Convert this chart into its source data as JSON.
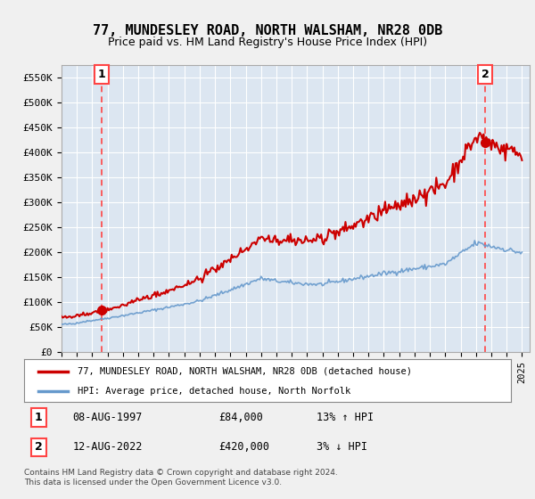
{
  "title": "77, MUNDESLEY ROAD, NORTH WALSHAM, NR28 0DB",
  "subtitle": "Price paid vs. HM Land Registry's House Price Index (HPI)",
  "background_color": "#dce6f1",
  "ylim": [
    0,
    575000
  ],
  "yticks": [
    0,
    50000,
    100000,
    150000,
    200000,
    250000,
    300000,
    350000,
    400000,
    450000,
    500000,
    550000
  ],
  "ytick_labels": [
    "£0",
    "£50K",
    "£100K",
    "£150K",
    "£200K",
    "£250K",
    "£300K",
    "£350K",
    "£400K",
    "£450K",
    "£500K",
    "£550K"
  ],
  "sale1_date": 1997.6,
  "sale1_price": 84000,
  "sale2_date": 2022.6,
  "sale2_price": 420000,
  "legend_line1": "77, MUNDESLEY ROAD, NORTH WALSHAM, NR28 0DB (detached house)",
  "legend_line2": "HPI: Average price, detached house, North Norfolk",
  "footer": "Contains HM Land Registry data © Crown copyright and database right 2024.\nThis data is licensed under the Open Government Licence v3.0.",
  "red_color": "#cc0000",
  "blue_color": "#6699cc",
  "grid_color": "#ffffff",
  "vline_color": "#ff4444",
  "fig_bg": "#f0f0f0"
}
